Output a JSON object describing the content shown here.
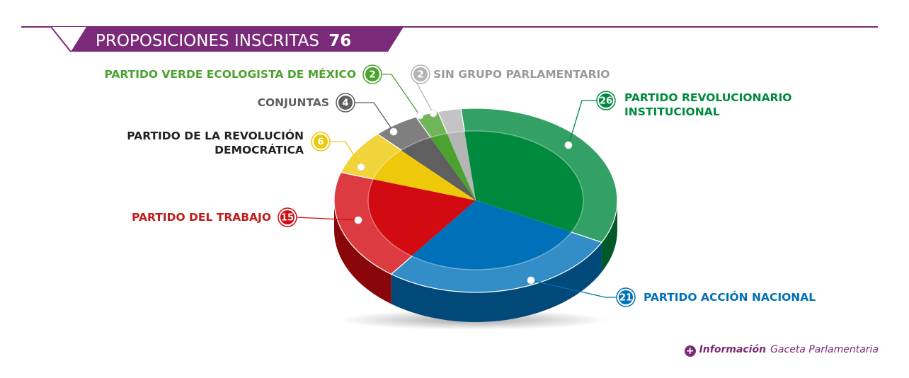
{
  "chart_data": {
    "type": "pie",
    "title": "PROPOSICIONES INSCRITAS",
    "total": "76",
    "slices": [
      {
        "name": "PARTIDO REVOLUCIONARIO INSTITUCIONAL",
        "value": 26,
        "color": "#008a3e"
      },
      {
        "name": "PARTIDO ACCIÓN NACIONAL",
        "value": 21,
        "color": "#0071b8"
      },
      {
        "name": "PARTIDO DEL TRABAJO",
        "value": 15,
        "color": "#d20a11"
      },
      {
        "name": "PARTIDO DE LA REVOLUCIÓN DEMOCRÁTICA",
        "value": 6,
        "color": "#eec80a"
      },
      {
        "name": "CONJUNTAS",
        "value": 4,
        "color": "#5f5f5f"
      },
      {
        "name": "PARTIDO VERDE ECOLOGISTA DE MÉXICO",
        "value": 2,
        "color": "#4ca22f"
      },
      {
        "name": "SIN GRUPO PARLAMENTARIO",
        "value": 2,
        "color": "#b5b5b5"
      }
    ]
  },
  "source": {
    "label": "Información",
    "name": "Gaceta Parlamentaria"
  },
  "colors": {
    "title_banner": "#7a2a78",
    "accent": "#7a2a78"
  }
}
